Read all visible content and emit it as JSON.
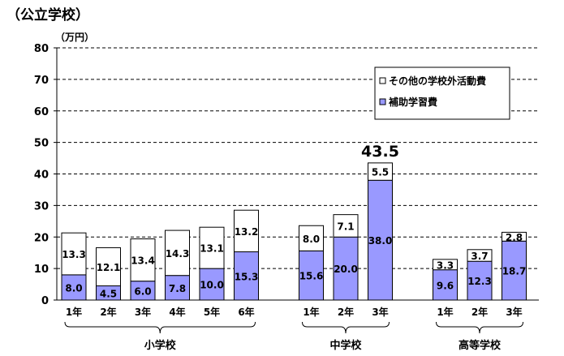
{
  "page_title": "（公立学校）",
  "chart_data": {
    "type": "bar",
    "stacked": true,
    "title": "（公立学校）",
    "ylabel": "（万円）",
    "ylim": [
      0,
      80
    ],
    "yticks": [
      0,
      10,
      20,
      30,
      40,
      50,
      60,
      70,
      80
    ],
    "grid": true,
    "legend_position": "top-right",
    "categories": [
      "1年",
      "2年",
      "3年",
      "4年",
      "5年",
      "6年",
      "1年",
      "2年",
      "3年",
      "1年",
      "2年",
      "3年"
    ],
    "groups": [
      {
        "name": "小学校",
        "categories": [
          "1年",
          "2年",
          "3年",
          "4年",
          "5年",
          "6年"
        ]
      },
      {
        "name": "中学校",
        "categories": [
          "1年",
          "2年",
          "3年"
        ]
      },
      {
        "name": "高等学校",
        "categories": [
          "1年",
          "2年",
          "3年"
        ]
      }
    ],
    "series": [
      {
        "name": "補助学習費",
        "color": "#9999ff",
        "values": [
          8.0,
          4.5,
          6.0,
          7.8,
          10.0,
          15.3,
          15.6,
          20.0,
          38.0,
          9.6,
          12.3,
          18.7
        ]
      },
      {
        "name": "その他の学校外活動費",
        "color": "#ffffff",
        "values": [
          13.3,
          12.1,
          13.4,
          14.3,
          13.1,
          13.2,
          8.0,
          7.1,
          5.5,
          3.3,
          3.7,
          2.8
        ]
      }
    ],
    "value_labels": {
      "補助学習費": [
        "8.0",
        "4.5",
        "6.0",
        "7.8",
        "10.0",
        "15.3",
        "15.6",
        "20.0",
        "38.0",
        "9.6",
        "12.3",
        "18.7"
      ],
      "その他の学校外活動費": [
        "13.3",
        "12.1",
        "13.4",
        "14.3",
        "13.1",
        "13.2",
        "8.0",
        "7.1",
        "5.5",
        "3.3",
        "3.7",
        "2.8"
      ]
    },
    "annotations": [
      {
        "text": "43.5",
        "category_index": 8,
        "value": 43.5
      }
    ]
  }
}
